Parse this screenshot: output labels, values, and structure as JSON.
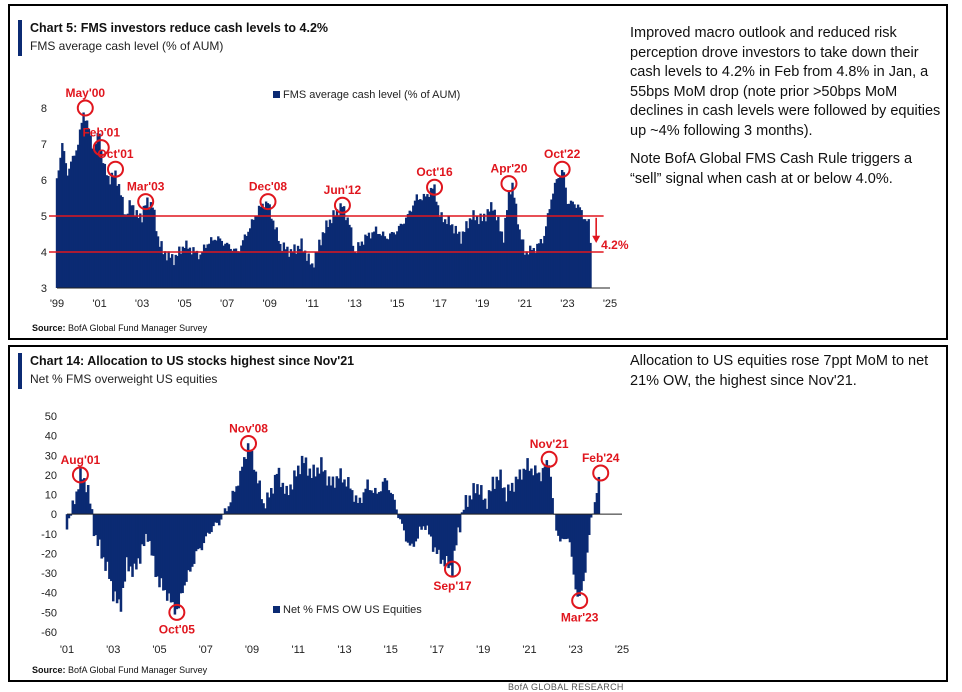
{
  "footer_brand": "BofA GLOBAL RESEARCH",
  "colors": {
    "bar": "#0b2a73",
    "highlight": "#e0161e",
    "accent": "#0b2a73"
  },
  "panel1": {
    "title": "Chart 5: FMS investors reduce cash levels to 4.2%",
    "subtitle": "FMS average cash level (% of AUM)",
    "source_label": "Source:",
    "source_text": "BofA Global Fund Manager Survey",
    "commentary": [
      "Improved macro outlook and reduced risk perception drove investors to take down their cash levels to 4.2% in Feb from 4.8% in Jan, a 55bps MoM drop (note prior >50bps MoM declines in cash levels were followed by equities up ~4% following 3 months).",
      "Note BofA Global FMS Cash Rule triggers a “sell” signal when cash at or below 4.0%."
    ]
  },
  "panel2": {
    "title": "Chart 14: Allocation to US stocks highest since Nov'21",
    "subtitle": "Net % FMS overweight US equities",
    "source_label": "Source:",
    "source_text": "BofA Global Fund Manager Survey",
    "commentary": [
      "Allocation to US equities rose 7ppt MoM to net 21% OW, the highest since Nov'21."
    ]
  },
  "chart_data": [
    {
      "type": "bar",
      "title": "Chart 5: FMS investors reduce cash levels to 4.2%",
      "ylabel": "FMS average cash level (% of AUM)",
      "ylim": [
        3,
        8
      ],
      "yticks": [
        3,
        4,
        5,
        6,
        7,
        8
      ],
      "xlim": [
        1999.0,
        2025.0
      ],
      "xticks": [
        {
          "x": 1999,
          "label": "'99"
        },
        {
          "x": 2001,
          "label": "'01"
        },
        {
          "x": 2003,
          "label": "'03"
        },
        {
          "x": 2005,
          "label": "'05"
        },
        {
          "x": 2007,
          "label": "'07"
        },
        {
          "x": 2009,
          "label": "'09"
        },
        {
          "x": 2011,
          "label": "'11"
        },
        {
          "x": 2013,
          "label": "'13"
        },
        {
          "x": 2015,
          "label": "'15"
        },
        {
          "x": 2017,
          "label": "'17"
        },
        {
          "x": 2019,
          "label": "'19"
        },
        {
          "x": 2021,
          "label": "'21"
        },
        {
          "x": 2023,
          "label": "'23"
        },
        {
          "x": 2025,
          "label": "'25"
        }
      ],
      "legend": "FMS average cash level (% of AUM)",
      "legend_position": "top-center",
      "grid": false,
      "reference_lines": [
        5.0,
        4.0
      ],
      "annotation_last": "4.2%",
      "series": [
        {
          "points": [
            [
              1999.0,
              6.0
            ],
            [
              1999.25,
              7.0
            ],
            [
              1999.5,
              6.2
            ],
            [
              1999.75,
              6.6
            ],
            [
              2000.0,
              7.0
            ],
            [
              2000.25,
              7.9
            ],
            [
              2000.5,
              7.4
            ],
            [
              2000.75,
              6.8
            ],
            [
              2001.0,
              7.4
            ],
            [
              2001.1,
              6.7
            ],
            [
              2001.25,
              6.3
            ],
            [
              2001.5,
              6.0
            ],
            [
              2001.75,
              6.2
            ],
            [
              2002.0,
              5.6
            ],
            [
              2002.25,
              5.0
            ],
            [
              2002.5,
              5.4
            ],
            [
              2002.75,
              5.0
            ],
            [
              2003.0,
              5.0
            ],
            [
              2003.2,
              5.4
            ],
            [
              2003.5,
              5.3
            ],
            [
              2003.75,
              4.4
            ],
            [
              2004.0,
              4.0
            ],
            [
              2004.5,
              3.8
            ],
            [
              2005.0,
              4.2
            ],
            [
              2005.5,
              4.0
            ],
            [
              2005.75,
              3.9
            ],
            [
              2006.0,
              4.2
            ],
            [
              2006.5,
              4.4
            ],
            [
              2007.0,
              4.2
            ],
            [
              2007.5,
              4.0
            ],
            [
              2008.0,
              4.6
            ],
            [
              2008.5,
              5.2
            ],
            [
              2008.9,
              5.4
            ],
            [
              2009.25,
              4.7
            ],
            [
              2009.5,
              4.2
            ],
            [
              2010.0,
              4.0
            ],
            [
              2010.5,
              4.2
            ],
            [
              2011.0,
              3.6
            ],
            [
              2011.5,
              4.5
            ],
            [
              2011.75,
              4.8
            ],
            [
              2012.0,
              5.0
            ],
            [
              2012.4,
              5.3
            ],
            [
              2012.75,
              4.8
            ],
            [
              2013.0,
              4.0
            ],
            [
              2013.5,
              4.4
            ],
            [
              2014.0,
              4.6
            ],
            [
              2014.5,
              4.4
            ],
            [
              2015.0,
              4.6
            ],
            [
              2015.5,
              5.0
            ],
            [
              2015.9,
              5.5
            ],
            [
              2016.25,
              5.5
            ],
            [
              2016.75,
              5.8
            ],
            [
              2017.0,
              5.0
            ],
            [
              2017.5,
              4.8
            ],
            [
              2018.0,
              4.4
            ],
            [
              2018.5,
              5.0
            ],
            [
              2019.0,
              4.9
            ],
            [
              2019.5,
              5.3
            ],
            [
              2019.75,
              4.8
            ],
            [
              2020.0,
              4.4
            ],
            [
              2020.25,
              5.6
            ],
            [
              2020.4,
              5.9
            ],
            [
              2020.75,
              4.6
            ],
            [
              2021.0,
              4.0
            ],
            [
              2021.5,
              4.1
            ],
            [
              2021.9,
              4.4
            ],
            [
              2022.25,
              5.5
            ],
            [
              2022.5,
              6.0
            ],
            [
              2022.8,
              6.3
            ],
            [
              2023.0,
              5.4
            ],
            [
              2023.5,
              5.3
            ],
            [
              2023.75,
              5.0
            ],
            [
              2024.0,
              4.8
            ],
            [
              2024.1,
              4.2
            ]
          ]
        }
      ],
      "annotations": [
        {
          "label": "May'00",
          "x": 2000.33,
          "y": 8.0
        },
        {
          "label": "Feb'01",
          "x": 2001.08,
          "y": 6.9
        },
        {
          "label": "Oct'01",
          "x": 2001.75,
          "y": 6.3
        },
        {
          "label": "Mar'03",
          "x": 2003.17,
          "y": 5.4
        },
        {
          "label": "Dec'08",
          "x": 2008.92,
          "y": 5.4
        },
        {
          "label": "Jun'12",
          "x": 2012.42,
          "y": 5.3
        },
        {
          "label": "Oct'16",
          "x": 2016.75,
          "y": 5.8
        },
        {
          "label": "Apr'20",
          "x": 2020.25,
          "y": 5.9
        },
        {
          "label": "Oct'22",
          "x": 2022.75,
          "y": 6.3
        }
      ]
    },
    {
      "type": "bar",
      "title": "Chart 14: Allocation to US stocks highest since Nov'21",
      "ylabel": "Net % FMS overweight US equities",
      "ylim": [
        -60,
        50
      ],
      "yticks": [
        -60,
        -50,
        -40,
        -30,
        -20,
        -10,
        0,
        10,
        20,
        30,
        40,
        50
      ],
      "xlim": [
        2001.0,
        2025.0
      ],
      "xticks": [
        {
          "x": 2001,
          "label": "'01"
        },
        {
          "x": 2003,
          "label": "'03"
        },
        {
          "x": 2005,
          "label": "'05"
        },
        {
          "x": 2007,
          "label": "'07"
        },
        {
          "x": 2009,
          "label": "'09"
        },
        {
          "x": 2011,
          "label": "'11"
        },
        {
          "x": 2013,
          "label": "'13"
        },
        {
          "x": 2015,
          "label": "'15"
        },
        {
          "x": 2017,
          "label": "'17"
        },
        {
          "x": 2019,
          "label": "'19"
        },
        {
          "x": 2021,
          "label": "'21"
        },
        {
          "x": 2023,
          "label": "'23"
        },
        {
          "x": 2025,
          "label": "'25"
        }
      ],
      "legend": "Net % FMS OW US Equities",
      "legend_position": "bottom-center",
      "grid": false,
      "series": [
        {
          "points": [
            [
              2001.0,
              -5
            ],
            [
              2001.3,
              5
            ],
            [
              2001.58,
              20
            ],
            [
              2001.9,
              14
            ],
            [
              2002.2,
              -10
            ],
            [
              2002.5,
              -20
            ],
            [
              2002.8,
              -30
            ],
            [
              2003.0,
              -40
            ],
            [
              2003.3,
              -48
            ],
            [
              2003.6,
              -25
            ],
            [
              2003.9,
              -30
            ],
            [
              2004.2,
              -20
            ],
            [
              2004.5,
              -10
            ],
            [
              2004.8,
              -28
            ],
            [
              2005.0,
              -35
            ],
            [
              2005.3,
              -40
            ],
            [
              2005.5,
              -45
            ],
            [
              2005.8,
              -50
            ],
            [
              2006.0,
              -38
            ],
            [
              2006.3,
              -30
            ],
            [
              2006.6,
              -20
            ],
            [
              2006.9,
              -15
            ],
            [
              2007.2,
              -8
            ],
            [
              2007.5,
              -5
            ],
            [
              2007.8,
              0
            ],
            [
              2008.2,
              10
            ],
            [
              2008.5,
              20
            ],
            [
              2008.85,
              36
            ],
            [
              2009.2,
              20
            ],
            [
              2009.5,
              5
            ],
            [
              2009.8,
              10
            ],
            [
              2010.1,
              22
            ],
            [
              2010.5,
              10
            ],
            [
              2010.9,
              20
            ],
            [
              2011.2,
              28
            ],
            [
              2011.6,
              20
            ],
            [
              2012.0,
              25
            ],
            [
              2012.4,
              15
            ],
            [
              2012.8,
              20
            ],
            [
              2013.2,
              15
            ],
            [
              2013.6,
              5
            ],
            [
              2014.0,
              15
            ],
            [
              2014.4,
              10
            ],
            [
              2014.8,
              18
            ],
            [
              2015.2,
              5
            ],
            [
              2015.6,
              -10
            ],
            [
              2015.9,
              -18
            ],
            [
              2016.2,
              -10
            ],
            [
              2016.5,
              -5
            ],
            [
              2016.8,
              -15
            ],
            [
              2017.1,
              -22
            ],
            [
              2017.4,
              -25
            ],
            [
              2017.67,
              -28
            ],
            [
              2017.9,
              -10
            ],
            [
              2018.2,
              5
            ],
            [
              2018.5,
              10
            ],
            [
              2018.8,
              15
            ],
            [
              2019.1,
              5
            ],
            [
              2019.4,
              15
            ],
            [
              2019.7,
              20
            ],
            [
              2020.0,
              10
            ],
            [
              2020.3,
              15
            ],
            [
              2020.6,
              20
            ],
            [
              2020.9,
              25
            ],
            [
              2021.2,
              22
            ],
            [
              2021.5,
              20
            ],
            [
              2021.85,
              28
            ],
            [
              2022.1,
              -5
            ],
            [
              2022.4,
              -15
            ],
            [
              2022.7,
              -10
            ],
            [
              2022.9,
              -30
            ],
            [
              2023.05,
              -40
            ],
            [
              2023.2,
              -44
            ],
            [
              2023.45,
              -25
            ],
            [
              2023.7,
              0
            ],
            [
              2023.9,
              10
            ],
            [
              2024.08,
              21
            ]
          ]
        }
      ],
      "annotations": [
        {
          "label": "Aug'01",
          "x": 2001.58,
          "y": 20,
          "position": "above"
        },
        {
          "label": "Oct'05",
          "x": 2005.75,
          "y": -50,
          "position": "below"
        },
        {
          "label": "Nov'08",
          "x": 2008.85,
          "y": 36,
          "position": "above"
        },
        {
          "label": "Sep'17",
          "x": 2017.67,
          "y": -28,
          "position": "below"
        },
        {
          "label": "Nov'21",
          "x": 2021.85,
          "y": 28,
          "position": "above"
        },
        {
          "label": "Mar'23",
          "x": 2023.17,
          "y": -44,
          "position": "below"
        },
        {
          "label": "Feb'24",
          "x": 2024.08,
          "y": 21,
          "position": "above"
        }
      ]
    }
  ]
}
